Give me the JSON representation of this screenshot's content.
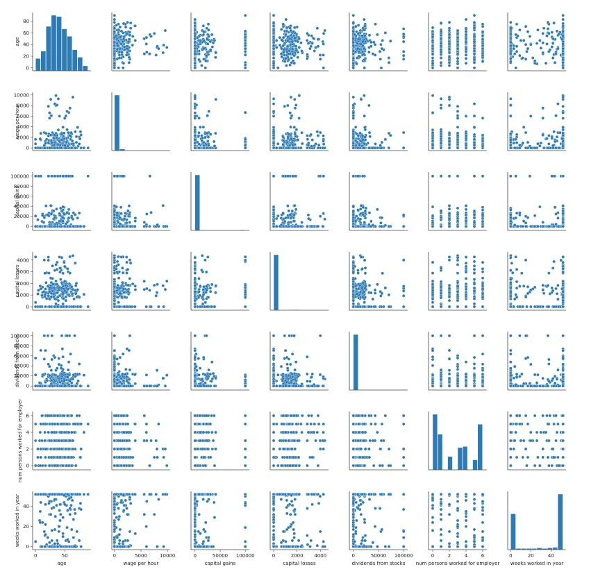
{
  "chart_data": {
    "type": "scatter",
    "kind": "pairplot",
    "color": "#2c7bb6",
    "edge_color": "#ffffff",
    "variables": [
      {
        "name": "age",
        "range": [
          -5,
          95
        ],
        "ticks": [
          0,
          20,
          40,
          60,
          80
        ],
        "xticks": [
          0,
          50
        ]
      },
      {
        "name": "wage per hour",
        "range": [
          -500,
          10500
        ],
        "ticks": [
          0,
          2000,
          4000,
          6000,
          8000,
          10000
        ],
        "xticks": [
          0,
          5000,
          10000
        ]
      },
      {
        "name": "capital gains",
        "range": [
          -8000,
          108000
        ],
        "ticks": [
          0,
          20000,
          40000,
          60000,
          80000,
          100000
        ],
        "xticks": [
          0,
          50000,
          100000
        ]
      },
      {
        "name": "capital losses",
        "range": [
          -300,
          4700
        ],
        "ticks": [
          0,
          1000,
          2000,
          3000,
          4000
        ],
        "xticks": [
          0,
          2000,
          4000
        ]
      },
      {
        "name": "dividends from stocks",
        "range": [
          -8000,
          108000
        ],
        "ticks": [
          0,
          20000,
          40000,
          60000,
          80000,
          100000
        ],
        "xticks": [
          0,
          50000,
          100000
        ]
      },
      {
        "name": "num persons worked for employer",
        "range": [
          -0.5,
          6.5
        ],
        "ticks": [
          0,
          2,
          4,
          6
        ],
        "xticks": [
          0,
          2,
          4,
          6
        ]
      },
      {
        "name": "weeks worked in year",
        "range": [
          -3,
          55
        ],
        "ticks": [
          0,
          20,
          40
        ],
        "xticks": [
          0,
          20,
          40
        ]
      }
    ],
    "diagonal": "histogram",
    "histograms": [
      {
        "variable": "age",
        "bins": [
          0,
          9,
          18,
          27,
          36,
          45,
          54,
          63,
          72,
          81,
          90
        ],
        "counts": [
          20,
          32,
          72,
          90,
          88,
          68,
          56,
          34,
          22,
          8
        ]
      },
      {
        "variable": "wage per hour",
        "bins": [
          0,
          1000,
          2000,
          3000,
          4000,
          5000,
          6000,
          7000,
          8000,
          9000,
          10000
        ],
        "counts": [
          100,
          3,
          0,
          0,
          0,
          0,
          0,
          0,
          0,
          0
        ]
      },
      {
        "variable": "capital gains",
        "bins": [
          0,
          10000,
          20000,
          30000,
          40000,
          50000,
          60000,
          70000,
          80000,
          90000,
          100000
        ],
        "counts": [
          100,
          1,
          0,
          0,
          0,
          0,
          0,
          0,
          0,
          1
        ]
      },
      {
        "variable": "capital losses",
        "bins": [
          0,
          436,
          872,
          1308,
          1744,
          2180,
          2616,
          3052,
          3488,
          3924,
          4360
        ],
        "counts": [
          100,
          0,
          0,
          1,
          1,
          0,
          0,
          0,
          0,
          0
        ]
      },
      {
        "variable": "dividends from stocks",
        "bins": [
          0,
          10000,
          20000,
          30000,
          40000,
          50000,
          60000,
          70000,
          80000,
          90000,
          100000
        ],
        "counts": [
          100,
          0,
          0,
          0,
          0,
          0,
          0,
          0,
          0,
          0
        ]
      },
      {
        "variable": "num persons worked for employer",
        "bins": [
          0,
          0.6,
          1.2,
          1.8,
          2.4,
          3.0,
          3.6,
          4.2,
          4.8,
          5.4,
          6.0
        ],
        "counts": [
          100,
          64,
          0,
          24,
          0,
          40,
          42,
          0,
          18,
          82
        ]
      },
      {
        "variable": "weeks worked in year",
        "bins": [
          0,
          5.2,
          10.4,
          15.6,
          20.8,
          26,
          31.2,
          36.4,
          41.6,
          46.8,
          52
        ],
        "counts": [
          62,
          2,
          2,
          2,
          2,
          3,
          2,
          3,
          4,
          96
        ]
      }
    ],
    "title": "",
    "grid": false,
    "legend": false
  }
}
